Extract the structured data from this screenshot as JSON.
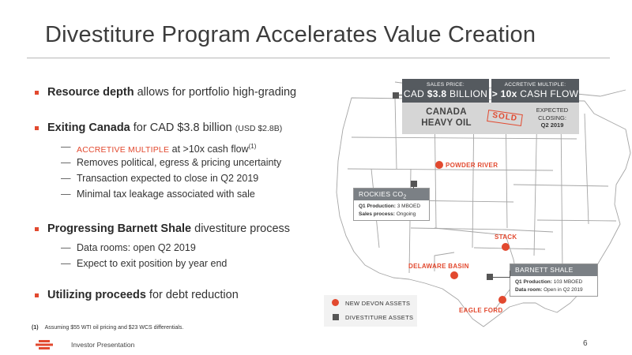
{
  "title": "Divestiture Program Accelerates Value Creation",
  "bullets": [
    {
      "bold": "Resource depth",
      "rest": " allows for portfolio high-grading"
    },
    {
      "bold": "Exiting Canada",
      "rest": " for CAD $3.8 billion ",
      "small": "(USD $2.8B)",
      "subs": [
        {
          "accent": "ACCRETIVE MULTIPLE",
          "text": " at >10x cash flow",
          "sup": "(1)"
        },
        {
          "text": "Removes political, egress & pricing uncertainty"
        },
        {
          "text": "Transaction expected to close in Q2 2019"
        },
        {
          "text": "Minimal tax leakage associated with sale"
        }
      ]
    },
    {
      "bold": "Progressing Barnett Shale",
      "rest": " divestiture process",
      "subs": [
        {
          "text": "Data rooms: open Q2 2019"
        },
        {
          "text": "Expect to exit position by year end"
        }
      ]
    },
    {
      "bold": "Utilizing proceeds",
      "rest": " for debt reduction"
    }
  ],
  "footnote": {
    "num": "(1)",
    "text": "Assuming $55 WTI oil pricing and $23 WCS differentials."
  },
  "footer": {
    "text": "Investor Presentation",
    "page": "6"
  },
  "canada": {
    "sales_price_label": "SALES PRICE:",
    "sales_price_prefix": "CAD ",
    "sales_price_bold": "$3.8",
    "sales_price_suffix": " BILLION",
    "multiple_label": "ACCRETIVE MULTIPLE:",
    "multiple_bold": "> 10x",
    "multiple_suffix": " CASH FLOW",
    "name_line1": "CANADA",
    "name_line2": "HEAVY OIL",
    "sold": "SOLD",
    "closing_line1": "EXPECTED",
    "closing_line2": "CLOSING:",
    "closing_value": "Q2 2019"
  },
  "rockies": {
    "title_main": "ROCKIES CO",
    "title_sub": "2",
    "prod_label": "Q1 Production:",
    "prod_value": " 3 MBOED",
    "sales_label": "Sales process:",
    "sales_value": " Ongoing"
  },
  "barnett": {
    "title": "BARNETT SHALE",
    "prod_label": "Q1 Production:",
    "prod_value": " 103 MBOED",
    "room_label": "Data room:",
    "room_value": " Open in Q2 2019"
  },
  "assets": {
    "powder_river": "POWDER RIVER",
    "stack": "STACK",
    "delaware": "DELAWARE BASIN",
    "eagle_ford": "EAGLE FORD"
  },
  "legend": {
    "new_devon": "NEW DEVON ASSETS",
    "divestiture": "DIVESTITURE ASSETS"
  },
  "colors": {
    "accent": "#e2492f",
    "dark_box": "#555a5f",
    "light_box": "#d6d6d6",
    "map_line": "#9a9a9a"
  }
}
